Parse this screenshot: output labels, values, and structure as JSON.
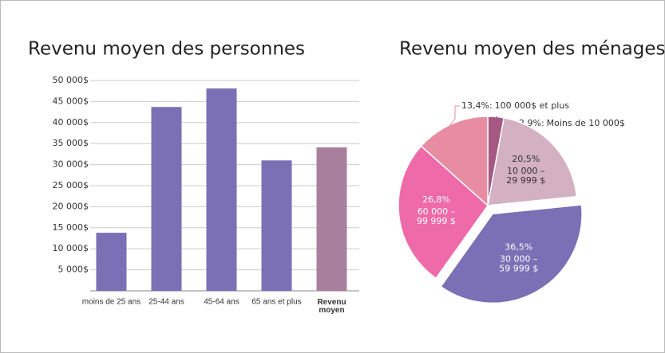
{
  "chart_data": [
    {
      "type": "bar",
      "title": "Revenu moyen des personnes",
      "categories": [
        "moins de 25 ans",
        "25-44 ans",
        "45-64 ans",
        "65 ans et plus",
        "Revenu\nmoyen"
      ],
      "values": [
        13800,
        43700,
        48100,
        31000,
        34100
      ],
      "colors": [
        "#7b6fb5",
        "#7b6fb5",
        "#7b6fb5",
        "#7b6fb5",
        "#a97f9e"
      ],
      "ylim": [
        0,
        50000
      ],
      "yticks": [
        {
          "value": 5000,
          "label": "5 000$"
        },
        {
          "value": 10000,
          "label": "10 000$"
        },
        {
          "value": 15000,
          "label": "15 000$"
        },
        {
          "value": 20000,
          "label": "20 000$"
        },
        {
          "value": 25000,
          "label": "25 000$"
        },
        {
          "value": 30000,
          "label": "30 000$"
        },
        {
          "value": 35000,
          "label": "35 000$"
        },
        {
          "value": 40000,
          "label": "40 000$"
        },
        {
          "value": 45000,
          "label": "45 000$"
        },
        {
          "value": 50000,
          "label": "50 000$"
        }
      ],
      "grid": true
    },
    {
      "type": "pie",
      "title": "Revenu moyen des ménages",
      "categories": [
        "Moins de 10 000$",
        "10 000 –\n29 999 $",
        "30 000 –\n59 999 $",
        "60 000 –\n99 999 $",
        "100 000$ et plus"
      ],
      "values": [
        2.9,
        20.5,
        36.5,
        26.8,
        13.4
      ],
      "value_labels": [
        "2,9%:",
        "20,5%",
        "36,5%",
        "26,8%",
        "13,4%:"
      ],
      "colors": [
        "#a55882",
        "#d4b0c3",
        "#7b6fb5",
        "#ef6aa8",
        "#e88ca2"
      ],
      "label_colors": [
        "#333333",
        "#333333",
        "#ffffff",
        "#ffffff",
        "#333333"
      ]
    }
  ]
}
